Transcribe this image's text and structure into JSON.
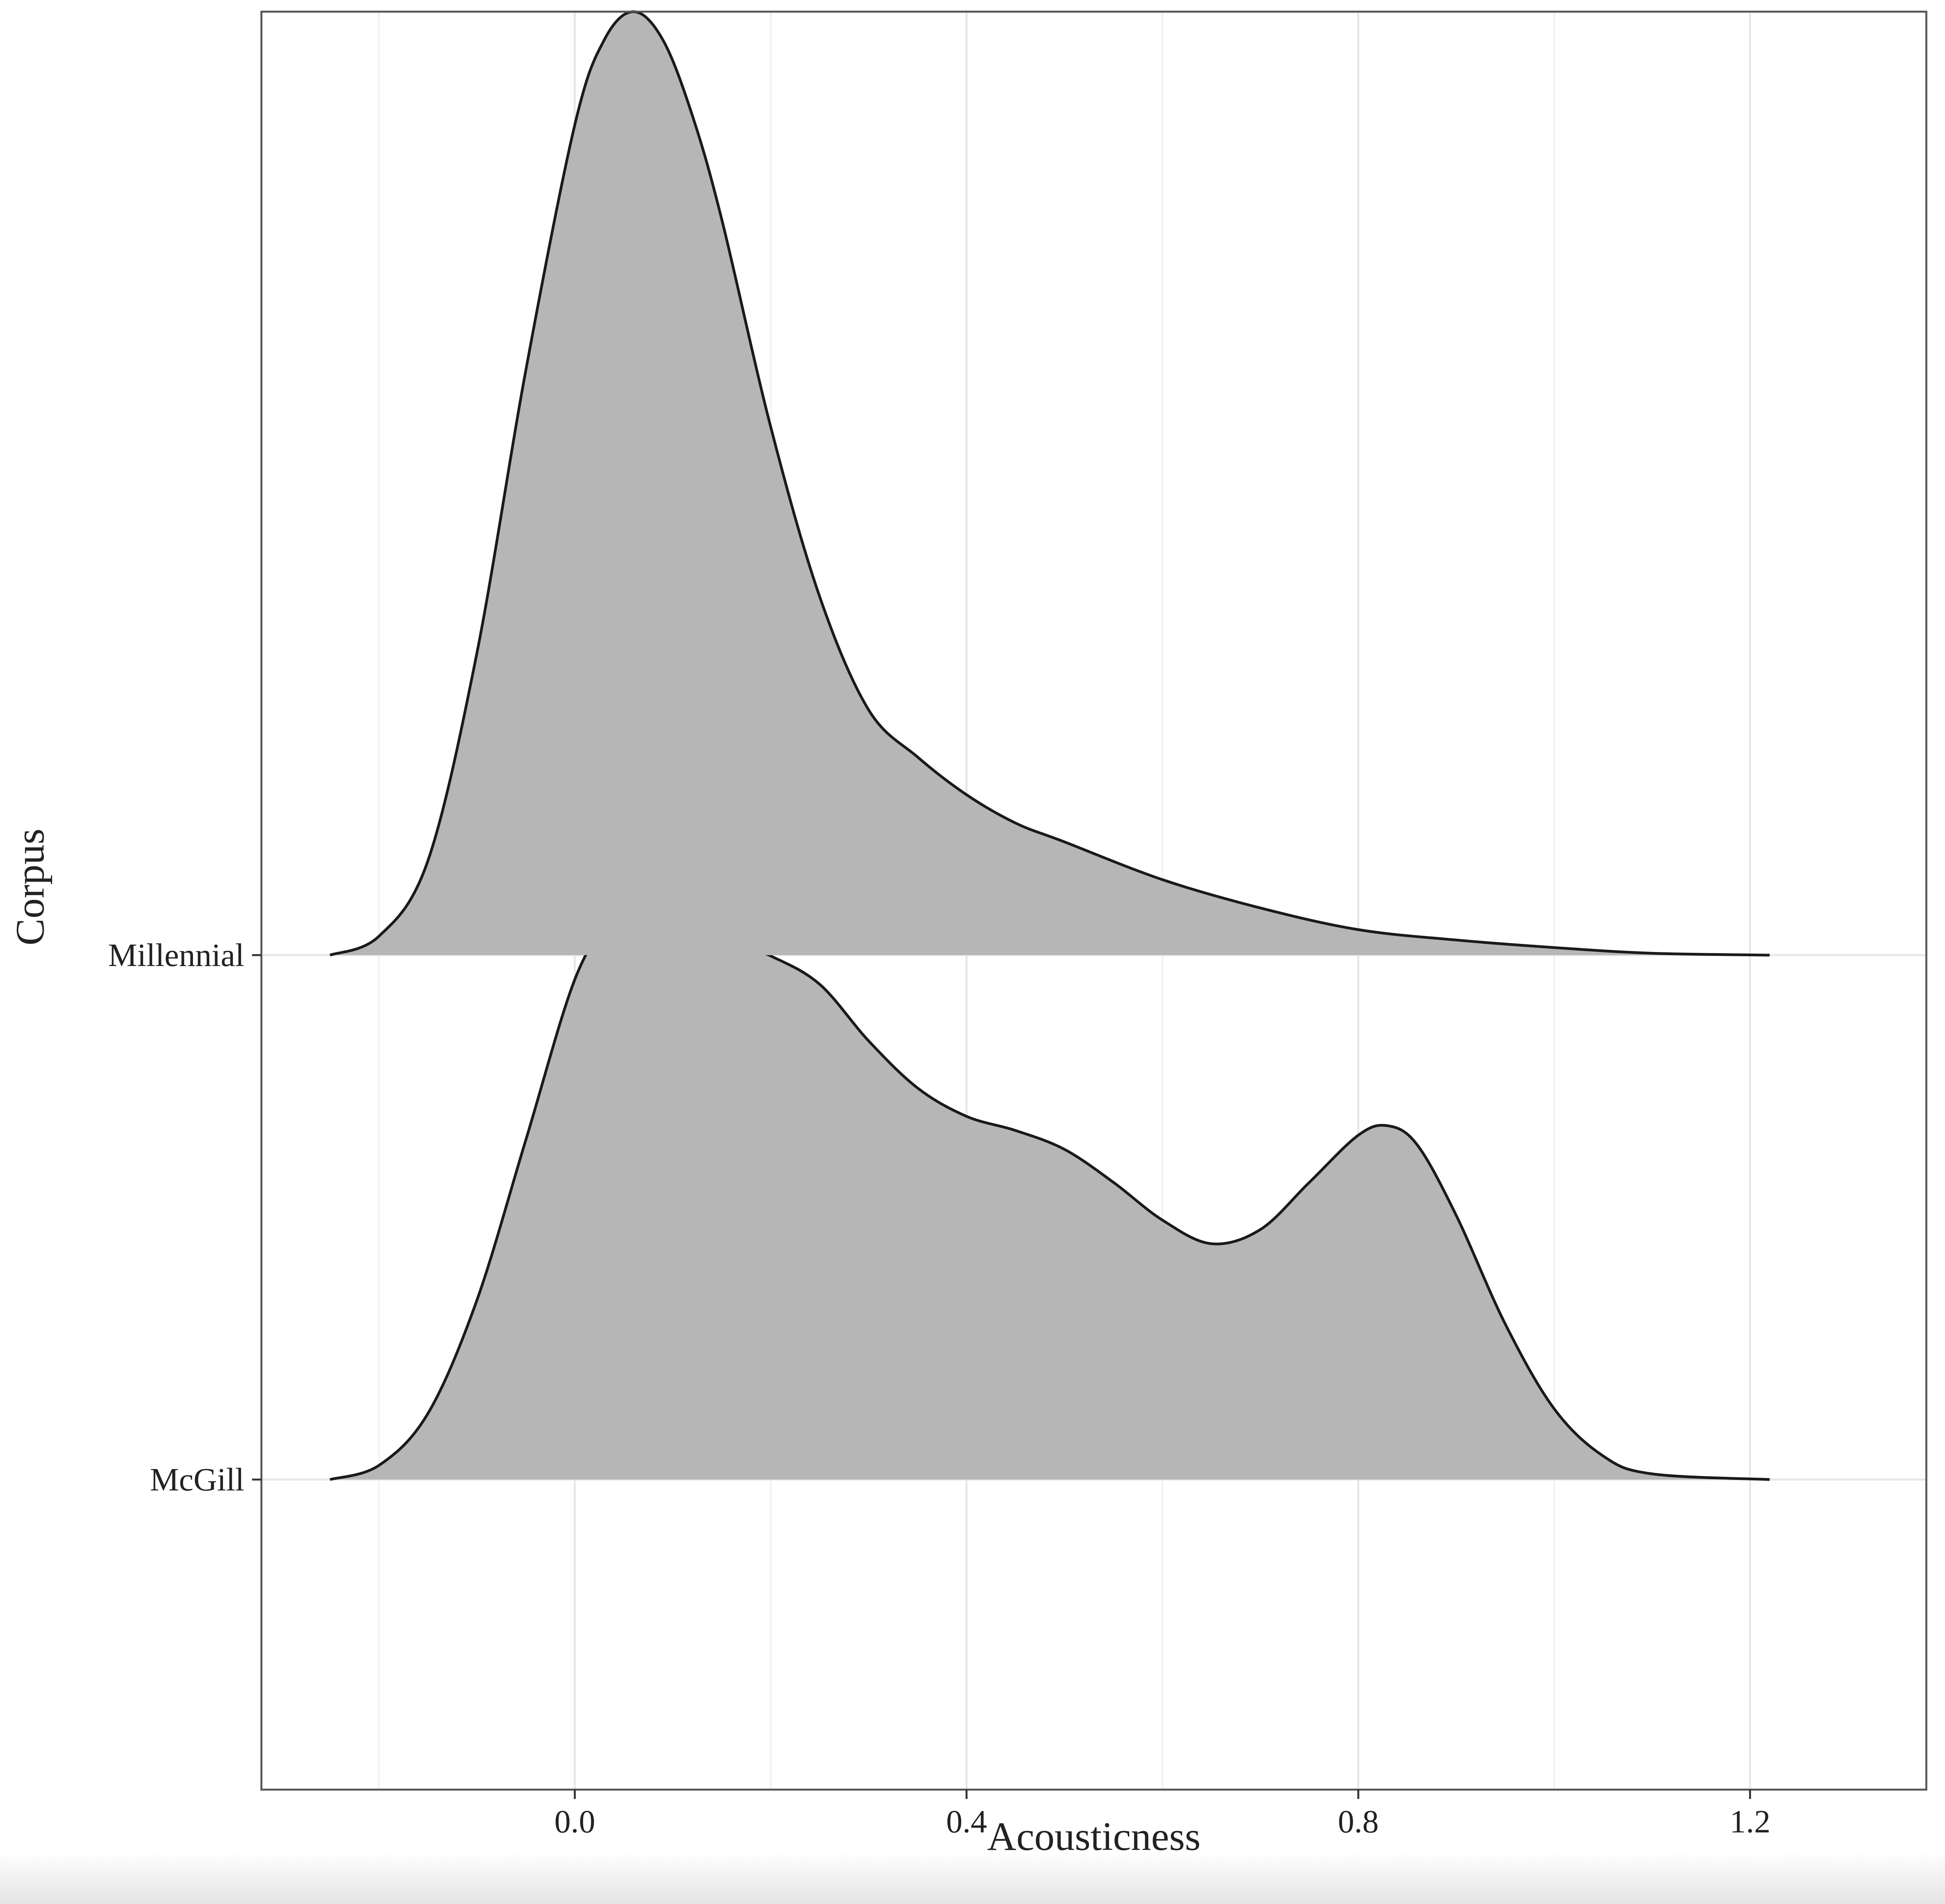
{
  "chart_data": {
    "type": "area",
    "subtype": "ridgeline-density",
    "xlabel": "Acousticness",
    "ylabel": "Corpus",
    "xlim": [
      -0.32,
      1.38
    ],
    "x_ticks": [
      0.0,
      0.4,
      0.8,
      1.2
    ],
    "x_tick_labels": [
      "0.0",
      "0.4",
      "0.8",
      "1.2"
    ],
    "grid": "on",
    "legend": "none",
    "fill_color": "#b6b6b6",
    "line_color": "#1a1a1a",
    "categories": [
      "Millennial",
      "McGill"
    ],
    "series": [
      {
        "name": "Millennial",
        "x": [
          -0.25,
          -0.2,
          -0.15,
          -0.1,
          -0.05,
          0.0,
          0.03,
          0.06,
          0.09,
          0.12,
          0.15,
          0.2,
          0.25,
          0.3,
          0.35,
          0.4,
          0.45,
          0.5,
          0.6,
          0.7,
          0.8,
          0.9,
          1.0,
          1.1,
          1.22
        ],
        "height": [
          0.0,
          0.02,
          0.1,
          0.32,
          0.62,
          0.88,
          0.97,
          1.0,
          0.97,
          0.89,
          0.78,
          0.56,
          0.38,
          0.26,
          0.21,
          0.17,
          0.14,
          0.12,
          0.08,
          0.05,
          0.027,
          0.016,
          0.008,
          0.002,
          0.0
        ]
      },
      {
        "name": "McGill",
        "x": [
          -0.25,
          -0.2,
          -0.15,
          -0.1,
          -0.05,
          0.0,
          0.04,
          0.07,
          0.1,
          0.15,
          0.2,
          0.25,
          0.3,
          0.35,
          0.4,
          0.45,
          0.5,
          0.55,
          0.6,
          0.65,
          0.7,
          0.75,
          0.8,
          0.83,
          0.86,
          0.9,
          0.95,
          1.0,
          1.05,
          1.1,
          1.22
        ],
        "height": [
          0.0,
          0.015,
          0.07,
          0.19,
          0.36,
          0.53,
          0.6,
          0.625,
          0.615,
          0.575,
          0.555,
          0.525,
          0.465,
          0.415,
          0.385,
          0.37,
          0.35,
          0.315,
          0.275,
          0.25,
          0.265,
          0.315,
          0.365,
          0.375,
          0.355,
          0.28,
          0.165,
          0.075,
          0.025,
          0.006,
          0.0
        ]
      }
    ]
  }
}
